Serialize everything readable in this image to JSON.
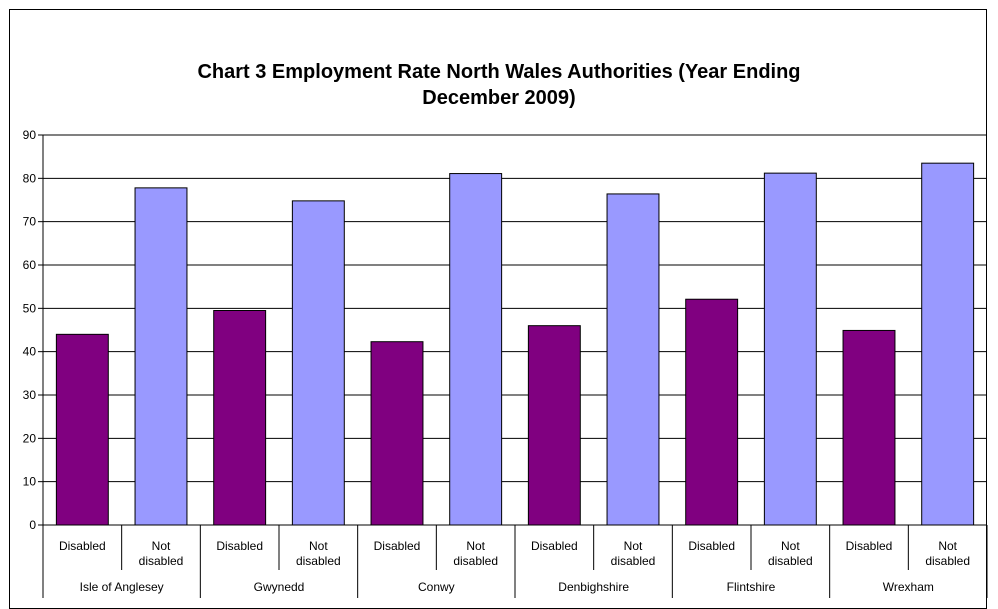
{
  "chart_data": {
    "type": "bar",
    "title_lines": [
      "Chart 3 Employment Rate North Wales Authorities (Year Ending",
      "December 2009)"
    ],
    "xlabel": "",
    "ylabel": "",
    "ylim": [
      0,
      90
    ],
    "yticks": [
      0,
      10,
      20,
      30,
      40,
      50,
      60,
      70,
      80,
      90
    ],
    "grid": true,
    "groups": [
      {
        "name": "Isle of Anglesey",
        "bars": [
          {
            "label": "Disabled",
            "value": 44
          },
          {
            "label": "Not disabled",
            "value": 77.8
          }
        ]
      },
      {
        "name": "Gwynedd",
        "bars": [
          {
            "label": "Disabled",
            "value": 49.5
          },
          {
            "label": "Not disabled",
            "value": 74.8
          }
        ]
      },
      {
        "name": "Conwy",
        "bars": [
          {
            "label": "Disabled",
            "value": 42.3
          },
          {
            "label": "Not disabled",
            "value": 81.1
          }
        ]
      },
      {
        "name": "Denbighshire",
        "bars": [
          {
            "label": "Disabled",
            "value": 46
          },
          {
            "label": "Not disabled",
            "value": 76.4
          }
        ]
      },
      {
        "name": "Flintshire",
        "bars": [
          {
            "label": "Disabled",
            "value": 52.1
          },
          {
            "label": "Not disabled",
            "value": 81.2
          }
        ]
      },
      {
        "name": "Wrexham",
        "bars": [
          {
            "label": "Disabled",
            "value": 44.9
          },
          {
            "label": "Not disabled",
            "value": 83.5
          }
        ]
      }
    ],
    "colors": {
      "Disabled": "#800080",
      "Not disabled": "#9999ff"
    }
  }
}
